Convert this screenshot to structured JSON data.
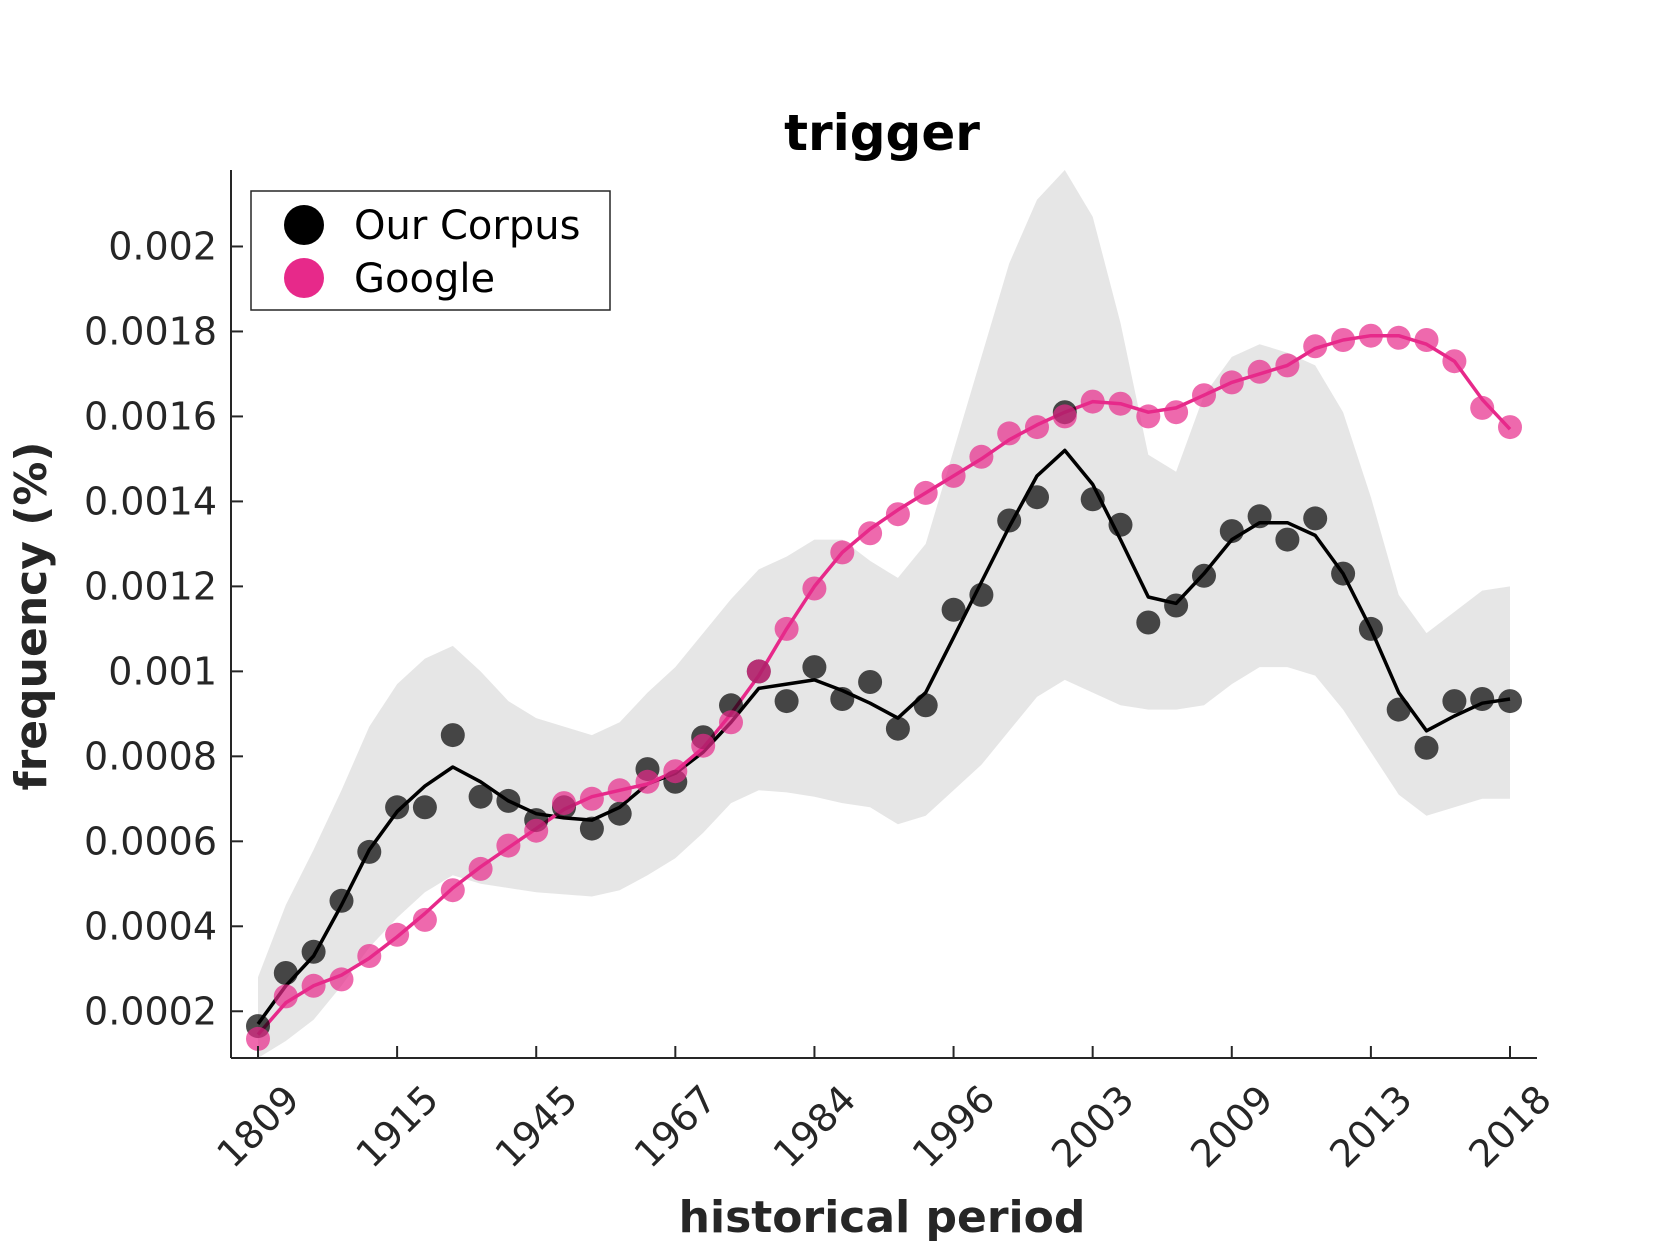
{
  "chart_data": {
    "type": "scatter",
    "title": "trigger",
    "xlabel": "historical period",
    "ylabel": "frequency (%)",
    "x_tick_labels": [
      "1809",
      "1915",
      "1945",
      "1967",
      "1984",
      "1996",
      "2003",
      "2009",
      "2013",
      "2018"
    ],
    "y_ticks": [
      0.0002,
      0.0004,
      0.0006,
      0.0008,
      0.001,
      0.0012,
      0.0014,
      0.0016,
      0.0018,
      0.002
    ],
    "y_tick_labels": [
      "0.0002",
      "0.0004",
      "0.0006",
      "0.0008",
      "0.001",
      "0.0012",
      "0.0014",
      "0.0016",
      "0.0018",
      "0.002"
    ],
    "ylim": [
      9e-05,
      0.00218
    ],
    "legend_position": "top-left",
    "grid": false,
    "series": [
      {
        "name": "Our Corpus",
        "color": "#000000",
        "marker_opacity": 0.7,
        "points": [
          0.000165,
          0.00029,
          0.00034,
          0.00046,
          0.000575,
          0.00068,
          0.00068,
          0.00085,
          0.000705,
          0.000695,
          0.00065,
          0.00068,
          0.00063,
          0.000665,
          0.00077,
          0.00074,
          0.000845,
          0.00092,
          0.001,
          0.00093,
          0.00101,
          0.000935,
          0.000975,
          0.000865,
          0.00092,
          0.001145,
          0.00118,
          0.001355,
          0.00141,
          0.00161,
          0.001405,
          0.001345,
          0.001115,
          0.001155,
          0.001225,
          0.00133,
          0.001365,
          0.00131,
          0.00136,
          0.00123,
          0.0011,
          0.00091,
          0.00082,
          0.00093,
          0.000935,
          0.00093
        ],
        "line": [
          0.00017,
          0.00026,
          0.00033,
          0.00045,
          0.00058,
          0.00067,
          0.00073,
          0.000775,
          0.00074,
          0.000695,
          0.000665,
          0.000655,
          0.00065,
          0.00068,
          0.000735,
          0.00076,
          0.00081,
          0.00088,
          0.00096,
          0.00097,
          0.00098,
          0.000955,
          0.000925,
          0.00089,
          0.00095,
          0.00108,
          0.00121,
          0.00134,
          0.00146,
          0.00152,
          0.00144,
          0.00131,
          0.001175,
          0.00116,
          0.00123,
          0.00131,
          0.00135,
          0.00135,
          0.00132,
          0.00123,
          0.0011,
          0.00095,
          0.00086,
          0.000895,
          0.000925,
          0.000935
        ],
        "band_upper": [
          0.00028,
          0.00045,
          0.00058,
          0.00072,
          0.00087,
          0.00097,
          0.00103,
          0.00106,
          0.001,
          0.00093,
          0.00089,
          0.00087,
          0.00085,
          0.00088,
          0.00095,
          0.00101,
          0.00109,
          0.00117,
          0.00124,
          0.00127,
          0.00131,
          0.00131,
          0.00126,
          0.00122,
          0.0013,
          0.00152,
          0.00174,
          0.00196,
          0.00211,
          0.00218,
          0.00207,
          0.00182,
          0.00151,
          0.00147,
          0.00165,
          0.00174,
          0.00177,
          0.00175,
          0.00172,
          0.00161,
          0.00141,
          0.00118,
          0.00109,
          0.00114,
          0.00119,
          0.0012
        ],
        "band_lower": [
          9e-05,
          0.00013,
          0.00018,
          0.00026,
          0.00035,
          0.00042,
          0.00048,
          0.00052,
          0.0005,
          0.00049,
          0.00048,
          0.000475,
          0.00047,
          0.000485,
          0.00052,
          0.00056,
          0.00062,
          0.00069,
          0.00072,
          0.000715,
          0.000705,
          0.00069,
          0.00068,
          0.00064,
          0.00066,
          0.00072,
          0.00078,
          0.00086,
          0.00094,
          0.00098,
          0.00095,
          0.00092,
          0.00091,
          0.00091,
          0.00092,
          0.00097,
          0.00101,
          0.00101,
          0.00099,
          0.00091,
          0.00081,
          0.00071,
          0.00066,
          0.00068,
          0.0007,
          0.0007
        ]
      },
      {
        "name": "Google",
        "color": "#E7298A",
        "marker_opacity": 0.7,
        "points": [
          0.000135,
          0.000235,
          0.00026,
          0.000275,
          0.00033,
          0.00038,
          0.000415,
          0.000485,
          0.000535,
          0.00059,
          0.000625,
          0.00069,
          0.0007,
          0.00072,
          0.00074,
          0.000765,
          0.000825,
          0.00088,
          0.001,
          0.0011,
          0.001195,
          0.00128,
          0.001325,
          0.00137,
          0.00142,
          0.00146,
          0.001505,
          0.00156,
          0.001575,
          0.0016,
          0.001635,
          0.00163,
          0.0016,
          0.00161,
          0.00165,
          0.00168,
          0.001705,
          0.00172,
          0.001765,
          0.00178,
          0.00179,
          0.001785,
          0.00178,
          0.00173,
          0.00162,
          0.001575
        ],
        "line": [
          0.000145,
          0.00022,
          0.00026,
          0.000285,
          0.000325,
          0.000375,
          0.00043,
          0.00049,
          0.00054,
          0.000585,
          0.00063,
          0.000675,
          0.000705,
          0.00072,
          0.000735,
          0.000765,
          0.00082,
          0.0009,
          0.00099,
          0.0011,
          0.0012,
          0.00128,
          0.001335,
          0.00138,
          0.00142,
          0.00146,
          0.0015,
          0.001545,
          0.00158,
          0.00161,
          0.001635,
          0.00163,
          0.00161,
          0.00162,
          0.00165,
          0.00168,
          0.0017,
          0.00172,
          0.00176,
          0.00178,
          0.00179,
          0.00179,
          0.00177,
          0.00173,
          0.00164,
          0.00157
        ]
      }
    ]
  }
}
